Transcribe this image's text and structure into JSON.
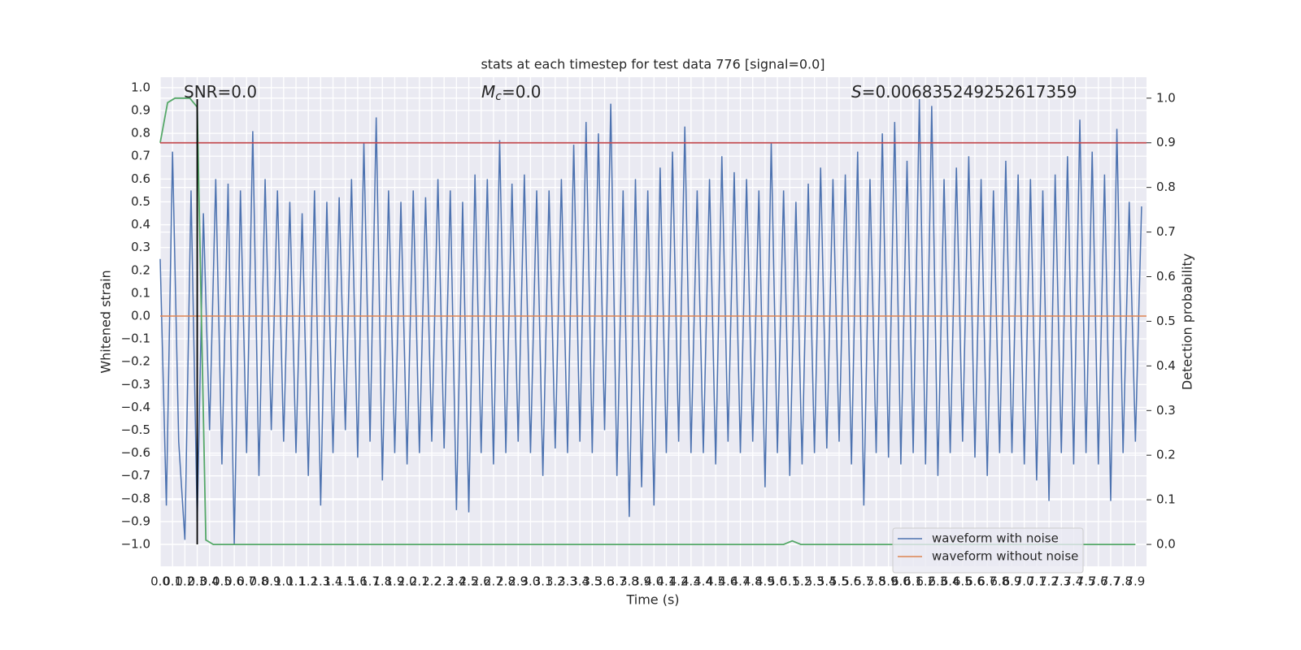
{
  "chart_data": {
    "type": "line",
    "title": "stats at each timestep for test data 776 [signal=0.0]",
    "x_label": "Time (s)",
    "y_label": "Whitened strain",
    "y2_label": "Detection probability",
    "annotations": [
      {
        "text": "SNR=0.0"
      },
      {
        "symbol": "M",
        "subscript": "c",
        "text": "=0.0"
      },
      {
        "symbol": "S",
        "text": "=0.006835249252617359"
      }
    ],
    "grid": true,
    "legend": "lower right",
    "xlim": [
      0,
      7.99
    ],
    "ylim": [
      -1.096,
      1.046
    ],
    "y2lim": [
      -0.049,
      1.047
    ],
    "xticks": [
      {
        "value": 0,
        "label": "0.0"
      },
      0.1,
      0.2,
      0.3,
      0.4,
      0.5,
      0.6,
      0.7,
      0.8,
      0.9,
      {
        "value": 1,
        "label": "1.0"
      },
      1.1,
      1.2,
      1.3,
      1.4,
      1.5,
      1.6,
      1.7,
      1.8,
      1.9,
      {
        "value": 2,
        "label": "2.0"
      },
      2.1,
      2.2,
      2.3,
      2.4,
      2.5,
      2.6,
      2.7,
      2.8,
      2.9,
      {
        "value": 3,
        "label": "3.0"
      },
      3.1,
      3.2,
      3.3,
      3.4,
      3.5,
      3.6,
      3.7,
      3.8,
      3.9,
      {
        "value": 4,
        "label": "4.0"
      },
      4.1,
      4.2,
      4.3,
      4.4,
      4.5,
      4.6,
      4.7,
      4.8,
      4.9,
      {
        "value": 5,
        "label": "5.0"
      },
      5.1,
      5.2,
      5.3,
      5.4,
      5.5,
      5.6,
      5.7,
      5.8,
      5.9,
      {
        "value": 6,
        "label": "6.0"
      },
      6.1,
      6.2,
      6.3,
      6.4,
      6.5,
      6.6,
      6.7,
      6.8,
      6.9,
      {
        "value": 7,
        "label": "7.0"
      },
      7.1,
      7.2,
      7.3,
      7.4,
      7.5,
      7.6,
      7.7,
      7.8,
      7.9
    ],
    "yticks": [
      {
        "value": 1,
        "label": "1.0"
      },
      0.9,
      0.8,
      0.7,
      0.6,
      0.5,
      0.4,
      0.3,
      0.2,
      0.1,
      {
        "value": 0,
        "label": "0.0"
      },
      {
        "value": -0.1,
        "label": "−0.1"
      },
      {
        "value": -0.2,
        "label": "−0.2"
      },
      {
        "value": -0.3,
        "label": "−0.3"
      },
      {
        "value": -0.4,
        "label": "−0.4"
      },
      {
        "value": -0.5,
        "label": "−0.5"
      },
      {
        "value": -0.6,
        "label": "−0.6"
      },
      {
        "value": -0.7,
        "label": "−0.7"
      },
      {
        "value": -0.8,
        "label": "−0.8"
      },
      {
        "value": -0.9,
        "label": "−0.9"
      },
      {
        "value": -1,
        "label": "−1.0"
      }
    ],
    "y2ticks": [
      {
        "value": 1,
        "label": "1.0"
      },
      0.9,
      0.8,
      0.7,
      0.6,
      0.5,
      0.4,
      0.3,
      0.2,
      0.1,
      {
        "value": 0,
        "label": "0.0"
      }
    ],
    "series": [
      {
        "name": "waveform with noise",
        "color": "#4c72b0",
        "x": [
          0,
          0.05,
          0.1,
          0.15,
          0.2,
          0.25,
          0.3,
          0.35,
          0.4,
          0.45,
          0.5,
          0.55,
          0.6,
          0.65,
          0.7,
          0.75,
          0.8,
          0.85,
          0.9,
          0.95,
          1,
          1.05,
          1.1,
          1.15,
          1.2,
          1.25,
          1.3,
          1.35,
          1.4,
          1.45,
          1.5,
          1.55,
          1.6,
          1.65,
          1.7,
          1.75,
          1.8,
          1.85,
          1.9,
          1.95,
          2,
          2.05,
          2.1,
          2.15,
          2.2,
          2.25,
          2.3,
          2.35,
          2.4,
          2.45,
          2.5,
          2.55,
          2.6,
          2.65,
          2.7,
          2.75,
          2.8,
          2.85,
          2.9,
          2.95,
          3,
          3.05,
          3.1,
          3.15,
          3.2,
          3.25,
          3.3,
          3.35,
          3.4,
          3.45,
          3.5,
          3.55,
          3.6,
          3.65,
          3.7,
          3.75,
          3.8,
          3.85,
          3.9,
          3.95,
          4,
          4.05,
          4.1,
          4.15,
          4.2,
          4.25,
          4.3,
          4.35,
          4.4,
          4.45,
          4.5,
          4.55,
          4.6,
          4.65,
          4.7,
          4.75,
          4.8,
          4.85,
          4.9,
          4.95,
          5,
          5.05,
          5.1,
          5.15,
          5.2,
          5.25,
          5.3,
          5.35,
          5.4,
          5.45,
          5.5,
          5.55,
          5.6,
          5.65,
          5.7,
          5.75,
          5.8,
          5.85,
          5.9,
          5.95,
          6,
          6.05,
          6.1,
          6.15,
          6.2,
          6.25,
          6.3,
          6.35,
          6.4,
          6.45,
          6.5,
          6.55,
          6.6,
          6.65,
          6.7,
          6.75,
          6.8,
          6.85,
          6.9,
          6.95,
          7,
          7.05,
          7.1,
          7.15,
          7.2,
          7.25,
          7.3,
          7.35,
          7.4,
          7.45,
          7.5,
          7.55,
          7.6,
          7.65,
          7.7,
          7.75,
          7.8,
          7.85,
          7.9,
          7.95
        ],
        "values": [
          0.25,
          -0.83,
          0.72,
          -0.55,
          -0.98,
          0.55,
          -0.9,
          0.45,
          -0.5,
          0.6,
          -0.65,
          0.58,
          -1.0,
          0.55,
          -0.6,
          0.81,
          -0.7,
          0.6,
          -0.5,
          0.55,
          -0.55,
          0.5,
          -0.6,
          0.45,
          -0.7,
          0.55,
          -0.83,
          0.5,
          -0.6,
          0.52,
          -0.5,
          0.6,
          -0.62,
          0.76,
          -0.55,
          0.87,
          -0.72,
          0.55,
          -0.6,
          0.5,
          -0.65,
          0.55,
          -0.6,
          0.52,
          -0.55,
          0.6,
          -0.58,
          0.55,
          -0.85,
          0.5,
          -0.86,
          0.62,
          -0.6,
          0.6,
          -0.65,
          0.77,
          -0.6,
          0.58,
          -0.55,
          0.62,
          -0.6,
          0.55,
          -0.7,
          0.55,
          -0.58,
          0.6,
          -0.6,
          0.75,
          -0.55,
          0.85,
          -0.6,
          0.8,
          -0.5,
          0.93,
          -0.7,
          0.55,
          -0.88,
          0.6,
          -0.75,
          0.55,
          -0.83,
          0.65,
          -0.6,
          0.72,
          -0.55,
          0.83,
          -0.6,
          0.55,
          -0.6,
          0.6,
          -0.65,
          0.7,
          -0.55,
          0.63,
          -0.6,
          0.6,
          -0.55,
          0.55,
          -0.75,
          0.76,
          -0.6,
          0.55,
          -0.7,
          0.5,
          -0.65,
          0.58,
          -0.6,
          0.65,
          -0.58,
          0.6,
          -0.55,
          0.62,
          -0.65,
          0.72,
          -0.83,
          0.6,
          -0.6,
          0.8,
          -0.62,
          0.85,
          -0.65,
          0.68,
          -0.6,
          0.95,
          -0.65,
          0.92,
          -0.7,
          0.6,
          -0.6,
          0.65,
          -0.55,
          0.7,
          -0.62,
          0.6,
          -0.7,
          0.55,
          -0.6,
          0.68,
          -0.6,
          0.62,
          -0.65,
          0.6,
          -0.72,
          0.55,
          -0.81,
          0.62,
          -0.6,
          0.7,
          -0.65,
          0.86,
          -0.6,
          0.72,
          -0.65,
          0.62,
          -0.81,
          0.82,
          -0.6,
          0.5,
          -0.55,
          0.48
        ]
      },
      {
        "name": "waveform without noise",
        "color": "#dd8452",
        "x": [
          0,
          7.99
        ],
        "values": [
          0,
          0
        ]
      },
      {
        "color": "#55a868",
        "axis": "y2",
        "x": [
          0,
          0.06,
          0.12,
          0.24,
          0.3,
          0.37,
          0.43,
          5.05,
          5.12,
          5.19,
          7.9
        ],
        "values": [
          0.9,
          0.99,
          1.0,
          1.0,
          0.98,
          0.01,
          0.0,
          0.0,
          0.008,
          0.0,
          0.0
        ]
      },
      {
        "color": "#c44e52",
        "axis": "y2",
        "x": [
          0,
          7.99
        ],
        "values": [
          0.9,
          0.9
        ]
      },
      {
        "color": "#000000",
        "x": [
          0.3,
          0.3
        ],
        "values": [
          -1.0,
          0.95
        ]
      }
    ]
  }
}
